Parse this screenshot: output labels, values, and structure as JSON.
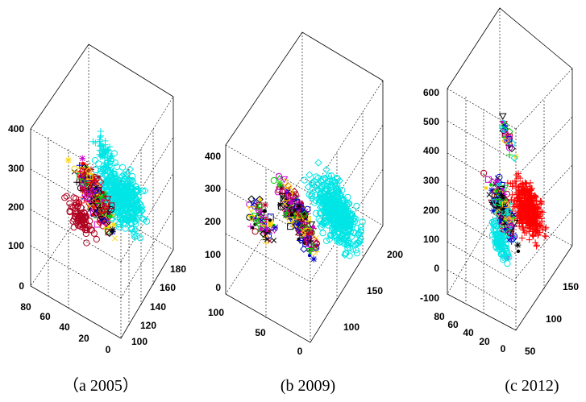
{
  "chart_data": [
    {
      "type": "scatter",
      "subtype": "3d-scatter",
      "caption": "（a 2005）",
      "grid": true,
      "x_ticks": [
        "0",
        "20",
        "40",
        "60",
        "80"
      ],
      "y_ticks": [
        "100",
        "120",
        "140",
        "160",
        "180"
      ],
      "z_ticks": [
        "0",
        "100",
        "200",
        "300",
        "400"
      ],
      "xlim": [
        0,
        80
      ],
      "ylim": [
        100,
        180
      ],
      "zlim": [
        0,
        400
      ],
      "series_colors": [
        "#00e5e5",
        "#000000",
        "#0000cc",
        "#b00020",
        "#00cc00",
        "#ffd400",
        "#cc00cc",
        "#ff0000"
      ]
    },
    {
      "type": "scatter",
      "subtype": "3d-scatter",
      "caption": "(b 2009)",
      "grid": true,
      "x_ticks": [
        "0",
        "50",
        "100"
      ],
      "y_ticks": [
        "100",
        "150",
        "200"
      ],
      "z_ticks": [
        "0",
        "100",
        "200",
        "300",
        "400"
      ],
      "xlim": [
        0,
        100
      ],
      "ylim": [
        100,
        200
      ],
      "zlim": [
        0,
        400
      ],
      "series_colors": [
        "#00e5e5",
        "#000000",
        "#0000cc",
        "#b00020",
        "#00cc00",
        "#ffd400",
        "#cc00cc"
      ]
    },
    {
      "type": "scatter",
      "subtype": "3d-scatter",
      "caption": "(c 2012)",
      "grid": true,
      "x_ticks": [
        "0",
        "20",
        "40",
        "60",
        "80"
      ],
      "y_ticks": [
        "50",
        "100",
        "150"
      ],
      "z_ticks": [
        "-100",
        "0",
        "100",
        "200",
        "300",
        "400",
        "500",
        "600"
      ],
      "xlim": [
        0,
        80
      ],
      "ylim": [
        50,
        150
      ],
      "zlim": [
        -100,
        600
      ],
      "series_colors": [
        "#ff0000",
        "#00e5e5",
        "#000000",
        "#0000cc",
        "#b00020",
        "#00cc00",
        "#ffd400",
        "#cc00cc"
      ]
    }
  ]
}
